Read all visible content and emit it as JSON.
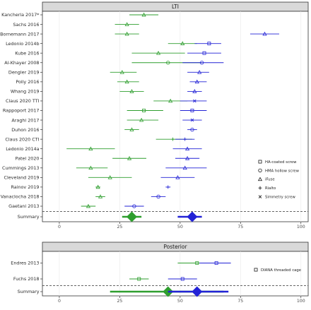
{
  "chart_data": [
    {
      "type": "forest",
      "panel": "LTI",
      "xlim": [
        -7,
        103
      ],
      "xticks": [
        0,
        25,
        50,
        75,
        100
      ],
      "colors": {
        "green": "#2e9e2e",
        "blue": "#2222d6",
        "dash": "#333333"
      },
      "legend": [
        {
          "marker": "square",
          "label": "HA-coated screw"
        },
        {
          "marker": "circle",
          "label": "HMA hollow screw"
        },
        {
          "marker": "triangle",
          "label": "iFuse"
        },
        {
          "marker": "plus",
          "label": "Rialto"
        },
        {
          "marker": "x",
          "label": "Simmetry screw"
        }
      ],
      "studies": [
        {
          "label": "Kancherla 2017*",
          "entries": [
            {
              "color": "green",
              "marker": "triangle",
              "est": 35,
              "lo": 29,
              "hi": 41
            }
          ]
        },
        {
          "label": "Sachs 2016",
          "entries": [
            {
              "color": "green",
              "marker": "triangle",
              "est": 28,
              "lo": 23,
              "hi": 33
            }
          ]
        },
        {
          "label": "Bornemann 2017",
          "entries": [
            {
              "color": "green",
              "marker": "triangle",
              "est": 28,
              "lo": 23,
              "hi": 33
            },
            {
              "color": "blue",
              "marker": "triangle",
              "est": 85,
              "lo": 79,
              "hi": 91
            }
          ]
        },
        {
          "label": "Ledonio 2014b",
          "entries": [
            {
              "color": "green",
              "marker": "triangle",
              "est": 51,
              "lo": 45,
              "hi": 57
            },
            {
              "color": "blue",
              "marker": "square",
              "est": 62,
              "lo": 56,
              "hi": 67
            }
          ]
        },
        {
          "label": "Kube 2016",
          "entries": [
            {
              "color": "green",
              "marker": "triangle",
              "est": 41,
              "lo": 30,
              "hi": 52
            },
            {
              "color": "blue",
              "marker": "square",
              "est": 60,
              "lo": 53,
              "hi": 67
            }
          ]
        },
        {
          "label": "Al-Khayer 2008",
          "entries": [
            {
              "color": "green",
              "marker": "circle",
              "est": 45,
              "lo": 30,
              "hi": 59
            },
            {
              "color": "blue",
              "marker": "circle",
              "est": 59,
              "lo": 51,
              "hi": 68
            }
          ]
        },
        {
          "label": "Dengler 2019",
          "entries": [
            {
              "color": "green",
              "marker": "triangle",
              "est": 26,
              "lo": 21,
              "hi": 32
            },
            {
              "color": "blue",
              "marker": "triangle",
              "est": 58,
              "lo": 53,
              "hi": 62
            }
          ]
        },
        {
          "label": "Polly 2016",
          "entries": [
            {
              "color": "green",
              "marker": "triangle",
              "est": 28,
              "lo": 24,
              "hi": 33
            },
            {
              "color": "blue",
              "marker": "triangle",
              "est": 57,
              "lo": 54,
              "hi": 61
            }
          ]
        },
        {
          "label": "Whang 2019",
          "entries": [
            {
              "color": "green",
              "marker": "triangle",
              "est": 30,
              "lo": 25,
              "hi": 35
            },
            {
              "color": "blue",
              "marker": "triangle",
              "est": 56,
              "lo": 53,
              "hi": 59
            }
          ]
        },
        {
          "label": "Claus 2020 TTI",
          "entries": [
            {
              "color": "green",
              "marker": "triangle",
              "est": 46,
              "lo": 39,
              "hi": 53
            },
            {
              "color": "blue",
              "marker": "x",
              "est": 56,
              "lo": 50,
              "hi": 61
            }
          ]
        },
        {
          "label": "Rappoport 2017",
          "entries": [
            {
              "color": "green",
              "marker": "square",
              "est": 35,
              "lo": 28,
              "hi": 43
            },
            {
              "color": "blue",
              "marker": "square",
              "est": 55,
              "lo": 50,
              "hi": 61
            }
          ]
        },
        {
          "label": "Araghi 2017",
          "entries": [
            {
              "color": "green",
              "marker": "triangle",
              "est": 34,
              "lo": 28,
              "hi": 41
            },
            {
              "color": "blue",
              "marker": "x",
              "est": 55,
              "lo": 51,
              "hi": 59
            }
          ]
        },
        {
          "label": "Duhon 2016",
          "entries": [
            {
              "color": "green",
              "marker": "triangle",
              "est": 30,
              "lo": 27,
              "hi": 33
            },
            {
              "color": "blue",
              "marker": "circle",
              "est": 55,
              "lo": 53,
              "hi": 57
            }
          ]
        },
        {
          "label": "Claus 2020 CTI",
          "entries": [
            {
              "color": "green",
              "marker": "plus",
              "est": 47,
              "lo": 40,
              "hi": 55
            },
            {
              "color": "blue",
              "marker": "plus",
              "est": 52,
              "lo": 48,
              "hi": 56
            }
          ]
        },
        {
          "label": "Ledonio 2014a",
          "entries": [
            {
              "color": "green",
              "marker": "triangle",
              "est": 13,
              "lo": 3,
              "hi": 23
            },
            {
              "color": "blue",
              "marker": "triangle",
              "est": 53,
              "lo": 47,
              "hi": 59
            }
          ]
        },
        {
          "label": "Patel 2020",
          "entries": [
            {
              "color": "green",
              "marker": "triangle",
              "est": 29,
              "lo": 22,
              "hi": 36
            },
            {
              "color": "blue",
              "marker": "triangle",
              "est": 53,
              "lo": 48,
              "hi": 58
            }
          ]
        },
        {
          "label": "Cummings 2013",
          "entries": [
            {
              "color": "green",
              "marker": "triangle",
              "est": 13,
              "lo": 7,
              "hi": 20
            },
            {
              "color": "blue",
              "marker": "triangle",
              "est": 52,
              "lo": 44,
              "hi": 61
            }
          ]
        },
        {
          "label": "Cleveland 2019",
          "entries": [
            {
              "color": "green",
              "marker": "triangle",
              "est": 21,
              "lo": 12,
              "hi": 30
            },
            {
              "color": "blue",
              "marker": "triangle",
              "est": 49,
              "lo": 42,
              "hi": 56
            }
          ]
        },
        {
          "label": "Rainov 2019",
          "entries": [
            {
              "color": "green",
              "marker": "triangle",
              "est": 16,
              "lo": 15,
              "hi": 17
            },
            {
              "color": "blue",
              "marker": "plus",
              "est": 45,
              "lo": 44,
              "hi": 46
            }
          ]
        },
        {
          "label": "Vanaclocha 2018",
          "entries": [
            {
              "color": "green",
              "marker": "triangle",
              "est": 17,
              "lo": 15,
              "hi": 19
            },
            {
              "color": "blue",
              "marker": "circle",
              "est": 41,
              "lo": 38,
              "hi": 44
            }
          ]
        },
        {
          "label": "Gaetani 2013",
          "entries": [
            {
              "color": "green",
              "marker": "triangle",
              "est": 12,
              "lo": 9,
              "hi": 15
            },
            {
              "color": "blue",
              "marker": "circle",
              "est": 31,
              "lo": 27,
              "hi": 35
            }
          ]
        }
      ],
      "summary": {
        "label": "Summary",
        "entries": [
          {
            "color": "green",
            "est": 30,
            "lo": 26,
            "hi": 34
          },
          {
            "color": "blue",
            "est": 55,
            "lo": 49,
            "hi": 59
          }
        ]
      }
    },
    {
      "type": "forest",
      "panel": "Posterior",
      "xlim": [
        -7,
        103
      ],
      "xticks": [
        0,
        25,
        50,
        75,
        100
      ],
      "colors": {
        "green": "#2e9e2e",
        "blue": "#2222d6",
        "dash": "#333333"
      },
      "legend": [
        {
          "marker": "square",
          "label": "DIANA threaded cage"
        }
      ],
      "studies": [
        {
          "label": "Endres 2013",
          "entries": [
            {
              "color": "green",
              "marker": "square",
              "est": 57,
              "lo": 49,
              "hi": 64
            },
            {
              "color": "blue",
              "marker": "square",
              "est": 65,
              "lo": 58,
              "hi": 71
            }
          ]
        },
        {
          "label": "Fuchs 2018",
          "entries": [
            {
              "color": "green",
              "marker": "square",
              "est": 33,
              "lo": 29,
              "hi": 37
            },
            {
              "color": "blue",
              "marker": "square",
              "est": 51,
              "lo": 45,
              "hi": 57
            }
          ]
        }
      ],
      "summary": {
        "label": "Summary",
        "entries": [
          {
            "color": "green",
            "est": 45,
            "lo": 21,
            "hi": 68
          },
          {
            "color": "blue",
            "est": 57,
            "lo": 45,
            "hi": 70
          }
        ]
      }
    }
  ]
}
